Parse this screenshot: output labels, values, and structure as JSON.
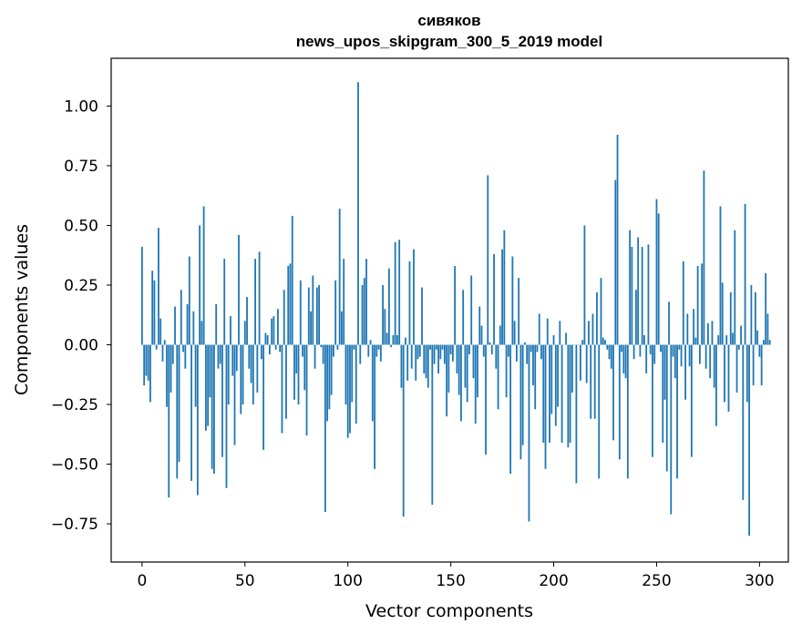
{
  "chart_data": {
    "type": "bar",
    "title": "сивяков",
    "subtitle": "news_upos_skipgram_300_5_2019 model",
    "xlabel": "Vector components",
    "ylabel": "Components values",
    "xlim": [
      -15,
      314
    ],
    "ylim": [
      -0.91,
      1.2
    ],
    "xticks": [
      0,
      50,
      100,
      150,
      200,
      250,
      300
    ],
    "yticks": [
      -0.75,
      -0.5,
      -0.25,
      0.0,
      0.25,
      0.5,
      0.75,
      1.0
    ],
    "xtick_labels": [
      "0",
      "50",
      "100",
      "150",
      "200",
      "250",
      "300"
    ],
    "ytick_labels": [
      "−0.75",
      "−0.50",
      "−0.25",
      "0.00",
      "0.25",
      "0.50",
      "0.75",
      "1.00"
    ],
    "bar_color": "#1f77b4",
    "grid": false,
    "values": [
      0.41,
      -0.17,
      -0.13,
      -0.15,
      -0.24,
      0.31,
      0.27,
      -0.02,
      0.49,
      0.11,
      -0.07,
      0.02,
      -0.26,
      -0.64,
      -0.2,
      -0.08,
      0.16,
      -0.56,
      -0.49,
      0.23,
      -0.03,
      -0.1,
      0.17,
      0.37,
      -0.57,
      0.14,
      -0.26,
      -0.63,
      0.5,
      0.1,
      0.58,
      -0.36,
      -0.34,
      -0.22,
      -0.52,
      -0.54,
      0.17,
      -0.1,
      -0.08,
      -0.47,
      0.36,
      -0.6,
      -0.25,
      0.12,
      -0.13,
      -0.42,
      -0.11,
      0.46,
      -0.29,
      -0.25,
      0.1,
      0.2,
      -0.1,
      -0.16,
      -0.25,
      0.36,
      -0.2,
      0.39,
      -0.06,
      -0.44,
      0.05,
      0.04,
      -0.04,
      0.11,
      0.12,
      -0.02,
      0.15,
      -0.03,
      -0.37,
      0.23,
      -0.31,
      0.33,
      0.34,
      0.54,
      -0.23,
      -0.12,
      -0.25,
      0.27,
      -0.05,
      -0.19,
      -0.38,
      0.24,
      0.14,
      0.29,
      -0.1,
      0.24,
      0.25,
      -0.01,
      -0.08,
      -0.7,
      -0.32,
      -0.27,
      -0.21,
      -0.05,
      0.27,
      -0.02,
      0.57,
      0.14,
      0.36,
      -0.25,
      -0.39,
      -0.37,
      -0.24,
      -0.02,
      -0.33,
      1.1,
      -0.08,
      0.25,
      0.28,
      0.36,
      -0.05,
      0.02,
      -0.32,
      -0.52,
      -0.05,
      -0.02,
      -0.07,
      0.25,
      0.15,
      0.05,
      0.32,
      -0.01,
      0.04,
      0.43,
      0.04,
      0.44,
      -0.18,
      -0.72,
      0.03,
      -0.15,
      0.35,
      -0.1,
      0.4,
      -0.15,
      -0.06,
      -0.05,
      0.24,
      -0.12,
      -0.14,
      -0.18,
      -0.02,
      -0.67,
      -0.08,
      -0.02,
      -0.12,
      -0.06,
      -0.02,
      -0.08,
      -0.3,
      -0.2,
      -0.04,
      -0.07,
      0.33,
      -0.12,
      -0.21,
      -0.32,
      0.23,
      -0.18,
      -0.24,
      -0.04,
      0.29,
      -0.14,
      -0.33,
      -0.22,
      0.16,
      0.08,
      -0.05,
      -0.46,
      0.71,
      0.01,
      -0.04,
      0.38,
      -0.1,
      -0.27,
      0.08,
      0.4,
      0.48,
      -0.22,
      -0.05,
      -0.54,
      0.37,
      0.1,
      -0.07,
      0.28,
      -0.48,
      -0.42,
      0.01,
      -0.08,
      -0.74,
      -0.03,
      -0.17,
      -0.27,
      -0.03,
      0.13,
      -0.06,
      -0.41,
      -0.52,
      0.11,
      -0.41,
      -0.29,
      0.04,
      -0.34,
      -0.26,
      0.1,
      -0.41,
      0.0,
      0.05,
      -0.43,
      -0.41,
      -0.2,
      0.0,
      -0.58,
      0.0,
      -0.15,
      0.02,
      0.5,
      -0.16,
      0.1,
      -0.31,
      0.13,
      -0.31,
      0.22,
      -0.56,
      0.28,
      0.03,
      0.02,
      -0.02,
      -0.06,
      -0.1,
      -0.4,
      0.69,
      0.88,
      -0.48,
      -0.03,
      -0.12,
      -0.14,
      -0.56,
      0.48,
      0.41,
      -0.06,
      0.23,
      0.45,
      -0.05,
      0.41,
      0.04,
      -0.12,
      0.42,
      -0.04,
      -0.47,
      -0.08,
      0.61,
      0.55,
      -0.03,
      -0.41,
      -0.23,
      -0.53,
      0.18,
      -0.71,
      -0.05,
      -0.14,
      -0.56,
      -0.02,
      -0.09,
      0.35,
      -0.23,
      0.13,
      -0.09,
      -0.47,
      0.15,
      0.03,
      0.33,
      -0.08,
      0.34,
      0.73,
      -0.1,
      0.09,
      -0.14,
      0.1,
      -0.18,
      -0.34,
      0.04,
      0.58,
      0.26,
      -0.24,
      0.04,
      -0.28,
      0.22,
      0.05,
      0.48,
      -0.2,
      -0.02,
      0.08,
      -0.65,
      0.59,
      -0.24,
      -0.8,
      0.25,
      -0.17,
      0.22,
      0.06,
      -0.05,
      -0.17,
      0.02,
      0.3,
      0.13,
      0.02
    ]
  }
}
